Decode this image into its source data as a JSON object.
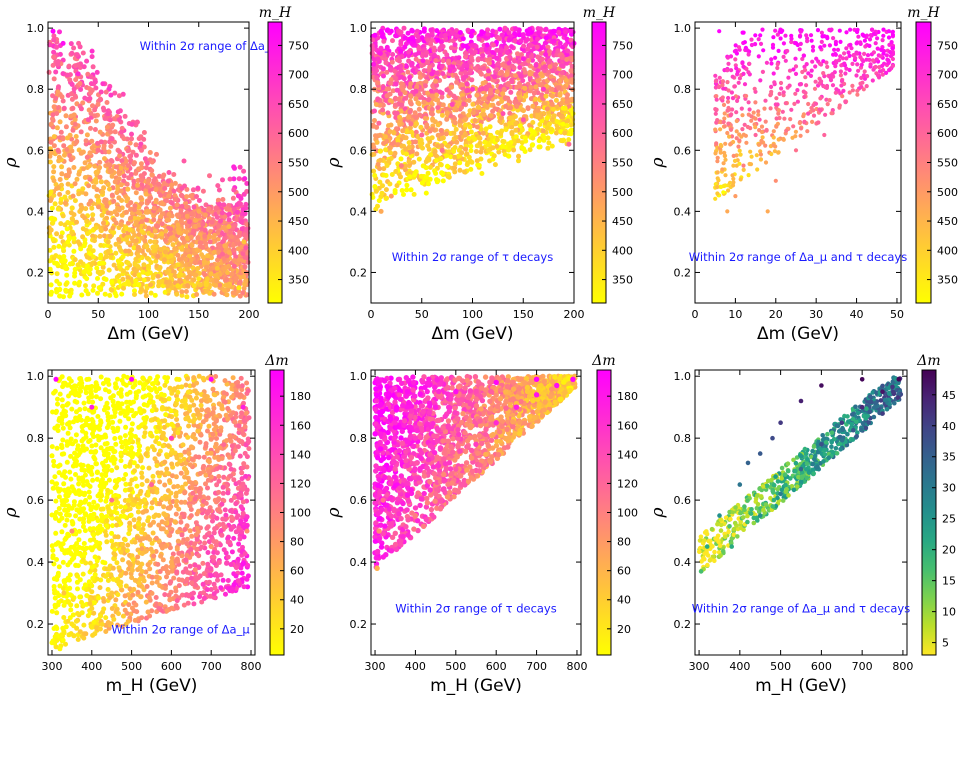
{
  "chart_data": [
    {
      "type": "scatter",
      "xlabel": "Δm (GeV)",
      "ylabel": "ρ",
      "xlim": [
        0,
        200
      ],
      "ylim": [
        0.1,
        1.02
      ],
      "xticks": [
        "0",
        "50",
        "100",
        "150",
        "200"
      ],
      "yticks": [
        "0.2",
        "0.4",
        "0.6",
        "0.8",
        "1.0"
      ],
      "colorbar": {
        "label": "m_H",
        "min": 310,
        "max": 790,
        "cmap": "spring_r",
        "ticks": [
          "350",
          "400",
          "450",
          "500",
          "550",
          "600",
          "650",
          "700",
          "750"
        ]
      },
      "annotation": "Within 2σ range of Δa_μ",
      "annotation_pos": "top-right",
      "points": [
        [
          5,
          0.99
        ],
        [
          15,
          0.95
        ],
        [
          30,
          0.85
        ],
        [
          40,
          0.7
        ],
        [
          50,
          0.6
        ],
        [
          60,
          0.72
        ],
        [
          80,
          0.55
        ],
        [
          100,
          0.5
        ],
        [
          120,
          0.45
        ],
        [
          150,
          0.4
        ],
        [
          180,
          0.35
        ],
        [
          195,
          0.3
        ],
        [
          25,
          0.45
        ],
        [
          60,
          0.3
        ],
        [
          100,
          0.22
        ],
        [
          150,
          0.18
        ],
        [
          190,
          0.15
        ],
        [
          10,
          0.6
        ],
        [
          30,
          0.3
        ],
        [
          120,
          0.25
        ]
      ]
    },
    {
      "type": "scatter",
      "xlabel": "Δm (GeV)",
      "ylabel": "ρ",
      "xlim": [
        0,
        200
      ],
      "ylim": [
        0.1,
        1.02
      ],
      "xticks": [
        "0",
        "50",
        "100",
        "150",
        "200"
      ],
      "yticks": [
        "0.2",
        "0.4",
        "0.6",
        "0.8",
        "1.0"
      ],
      "colorbar": {
        "label": "m_H",
        "min": 310,
        "max": 790,
        "cmap": "spring_r",
        "ticks": [
          "350",
          "400",
          "450",
          "500",
          "550",
          "600",
          "650",
          "700",
          "750"
        ]
      },
      "annotation": "Within 2σ range of τ decays",
      "annotation_pos": "bottom-center",
      "points": [
        [
          10,
          0.4
        ],
        [
          20,
          0.45
        ],
        [
          30,
          0.55
        ],
        [
          50,
          0.65
        ],
        [
          80,
          0.75
        ],
        [
          100,
          0.8
        ],
        [
          150,
          0.9
        ],
        [
          200,
          0.95
        ],
        [
          20,
          0.99
        ],
        [
          100,
          0.99
        ],
        [
          180,
          0.99
        ],
        [
          60,
          0.85
        ],
        [
          150,
          0.7
        ],
        [
          195,
          0.62
        ],
        [
          40,
          0.95
        ],
        [
          120,
          0.92
        ],
        [
          10,
          0.99
        ],
        [
          70,
          0.6
        ],
        [
          130,
          0.72
        ],
        [
          170,
          0.8
        ]
      ]
    },
    {
      "type": "scatter",
      "xlabel": "Δm (GeV)",
      "ylabel": "ρ",
      "xlim": [
        0,
        51
      ],
      "ylim": [
        0.1,
        1.02
      ],
      "xticks": [
        "0",
        "10",
        "20",
        "30",
        "40",
        "50"
      ],
      "yticks": [
        "0.2",
        "0.4",
        "0.6",
        "0.8",
        "1.0"
      ],
      "colorbar": {
        "label": "m_H",
        "min": 310,
        "max": 790,
        "cmap": "spring_r",
        "ticks": [
          "350",
          "400",
          "450",
          "500",
          "550",
          "600",
          "650",
          "700",
          "750"
        ]
      },
      "annotation": "Within 2σ range of Δa_μ and τ decays",
      "annotation_pos": "bottom-center",
      "points": [
        [
          6,
          0.99
        ],
        [
          8,
          0.4
        ],
        [
          10,
          0.45
        ],
        [
          12,
          0.55
        ],
        [
          15,
          0.65
        ],
        [
          20,
          0.75
        ],
        [
          25,
          0.85
        ],
        [
          30,
          0.9
        ],
        [
          40,
          0.95
        ],
        [
          48,
          0.99
        ],
        [
          18,
          0.4
        ],
        [
          20,
          0.5
        ],
        [
          25,
          0.6
        ],
        [
          32,
          0.65
        ],
        [
          35,
          0.8
        ],
        [
          12,
          0.85
        ],
        [
          22,
          0.95
        ],
        [
          28,
          0.72
        ],
        [
          16,
          0.7
        ],
        [
          38,
          0.92
        ]
      ]
    },
    {
      "type": "scatter",
      "xlabel": "m_H (GeV)",
      "ylabel": "ρ",
      "xlim": [
        290,
        810
      ],
      "ylim": [
        0.1,
        1.02
      ],
      "xticks": [
        "300",
        "400",
        "500",
        "600",
        "700",
        "800"
      ],
      "yticks": [
        "0.2",
        "0.4",
        "0.6",
        "0.8",
        "1.0"
      ],
      "colorbar": {
        "label": "Δm",
        "min": 2,
        "max": 198,
        "cmap": "spring_r",
        "ticks": [
          "20",
          "40",
          "60",
          "80",
          "100",
          "120",
          "140",
          "160",
          "180"
        ]
      },
      "annotation": "Within 2σ range of Δa_μ",
      "annotation_pos": "bottom-right",
      "points": [
        [
          310,
          0.99
        ],
        [
          320,
          0.12
        ],
        [
          350,
          0.2
        ],
        [
          400,
          0.25
        ],
        [
          450,
          0.3
        ],
        [
          500,
          0.35
        ],
        [
          600,
          0.4
        ],
        [
          700,
          0.45
        ],
        [
          790,
          0.5
        ],
        [
          700,
          0.99
        ],
        [
          500,
          0.99
        ],
        [
          400,
          0.9
        ],
        [
          600,
          0.8
        ],
        [
          750,
          0.7
        ],
        [
          350,
          0.5
        ],
        [
          450,
          0.6
        ],
        [
          550,
          0.65
        ],
        [
          650,
          0.55
        ],
        [
          780,
          0.9
        ],
        [
          330,
          0.3
        ]
      ]
    },
    {
      "type": "scatter",
      "xlabel": "m_H (GeV)",
      "ylabel": "ρ",
      "xlim": [
        290,
        810
      ],
      "ylim": [
        0.1,
        1.02
      ],
      "xticks": [
        "300",
        "400",
        "500",
        "600",
        "700",
        "800"
      ],
      "yticks": [
        "0.2",
        "0.4",
        "0.6",
        "0.8",
        "1.0"
      ],
      "colorbar": {
        "label": "Δm",
        "min": 2,
        "max": 198,
        "cmap": "spring_r",
        "ticks": [
          "20",
          "40",
          "60",
          "80",
          "100",
          "120",
          "140",
          "160",
          "180"
        ]
      },
      "annotation": "Within 2σ range of τ decays",
      "annotation_pos": "bottom-center",
      "points": [
        [
          305,
          0.38
        ],
        [
          310,
          0.5
        ],
        [
          320,
          0.6
        ],
        [
          350,
          0.7
        ],
        [
          400,
          0.8
        ],
        [
          450,
          0.9
        ],
        [
          500,
          0.95
        ],
        [
          600,
          0.98
        ],
        [
          700,
          0.99
        ],
        [
          790,
          0.99
        ],
        [
          400,
          0.55
        ],
        [
          450,
          0.62
        ],
        [
          500,
          0.7
        ],
        [
          550,
          0.78
        ],
        [
          600,
          0.85
        ],
        [
          650,
          0.9
        ],
        [
          700,
          0.94
        ],
        [
          750,
          0.97
        ],
        [
          350,
          0.85
        ],
        [
          380,
          0.95
        ]
      ]
    },
    {
      "type": "scatter",
      "xlabel": "m_H (GeV)",
      "ylabel": "ρ",
      "xlim": [
        290,
        810
      ],
      "ylim": [
        0.1,
        1.02
      ],
      "xticks": [
        "300",
        "400",
        "500",
        "600",
        "700",
        "800"
      ],
      "yticks": [
        "0.2",
        "0.4",
        "0.6",
        "0.8",
        "1.0"
      ],
      "colorbar": {
        "label": "Δm",
        "min": 3,
        "max": 49,
        "cmap": "viridis_r",
        "ticks": [
          "5",
          "10",
          "15",
          "20",
          "25",
          "30",
          "35",
          "40",
          "45"
        ]
      },
      "annotation": "Within 2σ range of Δa_μ and τ decays",
      "annotation_pos": "bottom-center",
      "points": [
        [
          305,
          0.37
        ],
        [
          320,
          0.45
        ],
        [
          350,
          0.55
        ],
        [
          400,
          0.65
        ],
        [
          450,
          0.75
        ],
        [
          500,
          0.85
        ],
        [
          550,
          0.92
        ],
        [
          600,
          0.97
        ],
        [
          700,
          0.99
        ],
        [
          790,
          0.99
        ],
        [
          380,
          0.45
        ],
        [
          450,
          0.55
        ],
        [
          500,
          0.62
        ],
        [
          550,
          0.7
        ],
        [
          600,
          0.78
        ],
        [
          650,
          0.85
        ],
        [
          700,
          0.9
        ],
        [
          750,
          0.95
        ],
        [
          420,
          0.72
        ],
        [
          480,
          0.8
        ]
      ]
    }
  ]
}
